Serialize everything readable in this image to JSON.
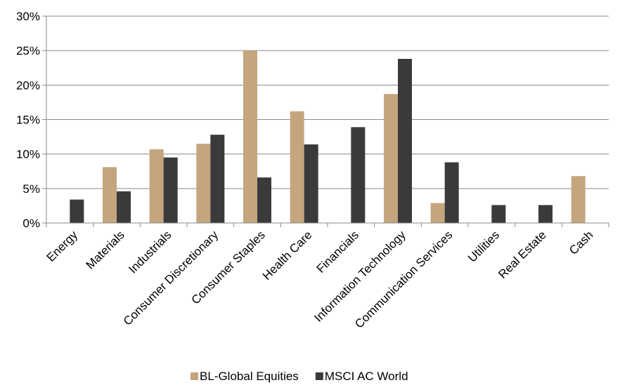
{
  "chart_data": {
    "type": "bar",
    "categories": [
      "Energy",
      "Materials",
      "Industrials",
      "Consumer Discretionary",
      "Consumer Staples",
      "Health Care",
      "Financials",
      "Information Technology",
      "Communication Services",
      "Utilities",
      "Real Estate",
      "Cash"
    ],
    "series": [
      {
        "name": "BL-Global Equities",
        "color": "#C4A57E",
        "values": [
          0,
          8.1,
          10.7,
          11.5,
          25.0,
          16.2,
          0,
          18.7,
          2.9,
          0,
          0,
          6.8
        ]
      },
      {
        "name": "MSCI AC World",
        "color": "#3A3A3A",
        "values": [
          3.4,
          4.6,
          9.5,
          12.8,
          6.6,
          11.4,
          13.9,
          23.8,
          8.8,
          2.6,
          2.6,
          0
        ]
      }
    ],
    "ylim": [
      0,
      30
    ],
    "yticks": [
      0,
      5,
      10,
      15,
      20,
      25,
      30
    ],
    "ytick_suffix": "%",
    "grid": true,
    "legend_position": "bottom"
  }
}
